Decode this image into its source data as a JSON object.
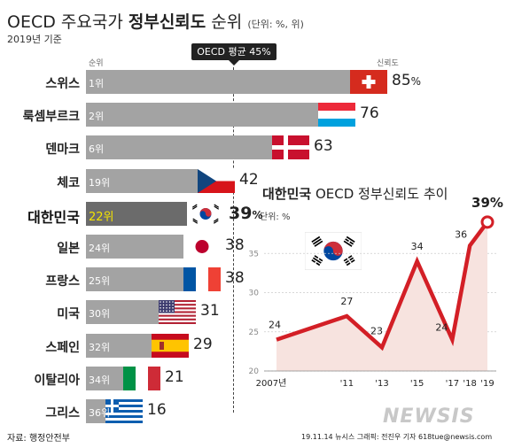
{
  "header": {
    "title_regular": "OECD 주요국가 ",
    "title_bold": "정부신뢰도",
    "title_end": " 순위",
    "unit": "(단위: %, 위)",
    "year": "2019년 기준",
    "rank_header": "순위",
    "trust_header": "신뢰도",
    "avg_label": "OECD 평균 45%"
  },
  "chart_data": [
    {
      "type": "bar",
      "title": "OECD 주요국가 정부신뢰도 순위",
      "unit": "%",
      "oecd_average": 45,
      "categories": [
        "스위스",
        "룩셈부르크",
        "덴마크",
        "체코",
        "대한민국",
        "일본",
        "프랑스",
        "미국",
        "스페인",
        "이탈리아",
        "그리스"
      ],
      "ranks": [
        "1위",
        "2위",
        "6위",
        "19위",
        "22위",
        "24위",
        "25위",
        "30위",
        "32위",
        "34위",
        "36위"
      ],
      "values": [
        85,
        76,
        63,
        42,
        39,
        38,
        38,
        31,
        29,
        21,
        16
      ],
      "value_labels": [
        "85%",
        "76",
        "63",
        "42",
        "39%",
        "38",
        "38",
        "31",
        "29",
        "21",
        "16"
      ],
      "flags": [
        "switzerland",
        "luxembourg",
        "denmark",
        "czech",
        "korea",
        "japan",
        "france",
        "usa",
        "spain",
        "italy",
        "greece"
      ],
      "highlight": "대한민국"
    },
    {
      "type": "area",
      "title": "대한민국 OECD 정부신뢰도 추이",
      "ylabel": "단위: %",
      "x": [
        2007,
        2011,
        2013,
        2015,
        2017,
        2018,
        2019
      ],
      "x_labels": [
        "2007년",
        "'11",
        "'13",
        "'15",
        "'17",
        "'18",
        "'19"
      ],
      "y_ticks": [
        20,
        25,
        30,
        35
      ],
      "values": [
        24,
        27,
        23,
        34,
        24,
        36,
        39
      ],
      "value_labels": [
        "24",
        "27",
        "23",
        "34",
        "24",
        "36",
        "39%"
      ],
      "ylim": [
        20,
        40
      ]
    }
  ],
  "trend": {
    "title_bold": "대한민국",
    "title_rest": " OECD 정부신뢰도 추이",
    "unit": "단위: %"
  },
  "footer": {
    "source": "자료: 행정안전부",
    "credit": "19.11.14  뉴시스 그래픽: 전진우 기자  618tue@newsis.com",
    "watermark": "NEWSIS"
  },
  "colors": {
    "line": "#d31f26",
    "area": "#f7e3df",
    "bar": "#a3a3a3",
    "bar_highlight": "#6b6b6b",
    "rank_highlight": "#f5e400"
  }
}
